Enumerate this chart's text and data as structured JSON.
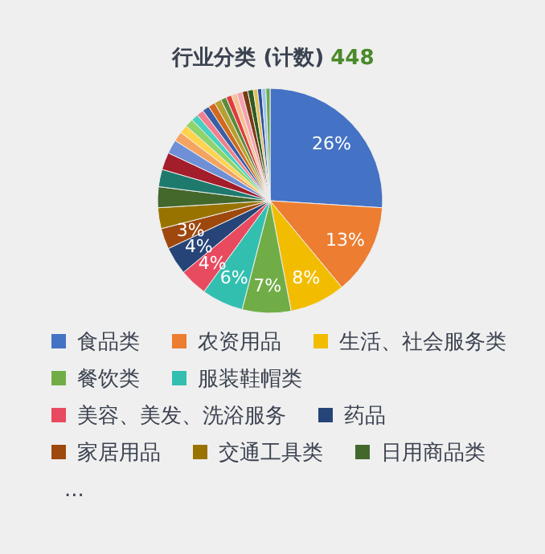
{
  "chart_data": {
    "type": "pie",
    "title": "行业分类 (计数)",
    "subtitle": "448",
    "categories": [
      "食品类",
      "农资用品",
      "生活、社会服务类",
      "餐饮类",
      "服装鞋帽类",
      "美容、美发、洗浴服务",
      "药品",
      "家居用品",
      "交通工具类",
      "日用商品类",
      null,
      null,
      null,
      null,
      null,
      null,
      null,
      null,
      null,
      null,
      null,
      null,
      null,
      null,
      null,
      null,
      null,
      null,
      null,
      null,
      null
    ],
    "values": [
      26,
      13,
      8,
      7,
      6,
      4,
      4,
      3,
      3,
      3,
      2.5,
      2.5,
      2,
      1.4,
      1.2,
      1.2,
      1,
      1,
      1,
      1,
      1,
      0.8,
      0.8,
      0.8,
      0.8,
      0.8,
      0.8,
      0.6,
      0.6,
      0.6,
      0.6
    ],
    "colors": [
      "#4472c4",
      "#ed7d31",
      "#f2bd00",
      "#70ad47",
      "#33bfb0",
      "#e84a5f",
      "#264478",
      "#9e480e",
      "#997300",
      "#43682b",
      "#1f7a6e",
      "#a31d2b",
      "#6f8fd6",
      "#f4a460",
      "#ffd34d",
      "#8fd36a",
      "#48d1bd",
      "#f07f8f",
      "#3a5fa8",
      "#d2691e",
      "#b8a030",
      "#5b8c3a",
      "#e03c3c",
      "#f8c090",
      "#f5a0b0",
      "#7a3a10",
      "#2f5a20",
      "#e0c050",
      "#2b4f9e",
      "#9cc3e6",
      "#6aa84f"
    ],
    "value_labels": [
      "26%",
      "13%",
      "8%",
      "7%",
      "6%",
      "4%",
      "4%",
      "3%",
      null,
      null,
      null,
      null,
      null,
      null,
      null,
      null,
      null,
      null,
      null,
      null,
      null,
      null,
      null,
      null,
      null,
      null,
      null,
      null,
      null,
      null,
      null
    ],
    "legend": "bottom",
    "annotations": [
      "..."
    ]
  }
}
